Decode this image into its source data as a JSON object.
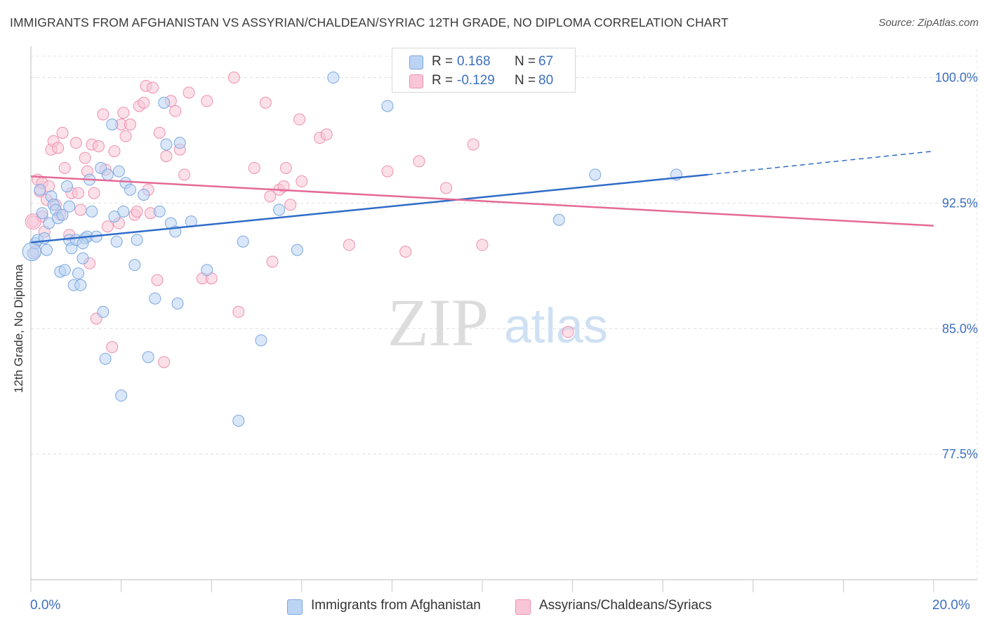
{
  "title": "IMMIGRANTS FROM AFGHANISTAN VS ASSYRIAN/CHALDEAN/SYRIAC 12TH GRADE, NO DIPLOMA CORRELATION CHART",
  "source": "Source: ZipAtlas.com",
  "watermark": {
    "zip": "ZIP",
    "atlas": "atlas"
  },
  "colors": {
    "blue": "#7ba7e0",
    "blue_fill": "#bcd4f4",
    "blue_line": "#2f6cc7",
    "pink": "#ef8fb0",
    "pink_fill": "#f8c6d6",
    "pink_line": "#e46a96",
    "tick_text": "#3c6fbf"
  },
  "legend": {
    "rows": [
      {
        "r_label": "R = ",
        "r_value": "0.168",
        "n_label": "N = ",
        "n_value": "67"
      },
      {
        "r_label": "R = ",
        "r_value": "-0.129",
        "n_label": "N = ",
        "n_value": "80"
      }
    ]
  },
  "bottom_legend": [
    "Immigrants from Afghanistan",
    "Assyrians/Chaldeans/Syriacs"
  ],
  "chart_data": {
    "type": "scatter",
    "title": "IMMIGRANTS FROM AFGHANISTAN VS ASSYRIAN/CHALDEAN/SYRIAC 12TH GRADE, NO DIPLOMA CORRELATION CHART",
    "xlabel": "",
    "ylabel": "12th Grade, No Diploma",
    "xlim": [
      0,
      20
    ],
    "ylim": [
      70.0,
      101.7
    ],
    "x_tick_labels": [
      "0.0%",
      "20.0%"
    ],
    "y_ticks": [
      100.0,
      92.5,
      85.0,
      77.5
    ],
    "y_tick_labels": [
      "100.0%",
      "92.5%",
      "85.0%",
      "77.5%"
    ],
    "grid": true,
    "legend_position": "top-center",
    "series": [
      {
        "name": "Immigrants from Afghanistan",
        "color": "#7ba7e0",
        "trend": {
          "x0": 0.0,
          "y0": 90.15,
          "x1": 15.0,
          "y1": 94.2,
          "dashed_to_x": 20.0,
          "dashed_to_y": 95.6
        },
        "points": [
          [
            0.05,
            89.5
          ],
          [
            0.1,
            90.1
          ],
          [
            0.15,
            90.3
          ],
          [
            0.2,
            93.3
          ],
          [
            0.25,
            91.9
          ],
          [
            0.3,
            90.4
          ],
          [
            0.35,
            89.7
          ],
          [
            0.4,
            91.3
          ],
          [
            0.45,
            92.9
          ],
          [
            0.5,
            92.4
          ],
          [
            0.55,
            92.1
          ],
          [
            0.6,
            91.6
          ],
          [
            0.65,
            88.4
          ],
          [
            0.7,
            91.8
          ],
          [
            0.75,
            88.5
          ],
          [
            0.8,
            93.5
          ],
          [
            0.85,
            90.3
          ],
          [
            0.9,
            89.8
          ],
          [
            0.95,
            87.6
          ],
          [
            1.0,
            90.3
          ],
          [
            1.05,
            88.3
          ],
          [
            1.1,
            87.6
          ],
          [
            1.15,
            89.2
          ],
          [
            1.2,
            90.4
          ],
          [
            1.25,
            90.5
          ],
          [
            1.3,
            93.9
          ],
          [
            1.35,
            92.0
          ],
          [
            1.45,
            90.5
          ],
          [
            1.55,
            94.6
          ],
          [
            1.6,
            86.0
          ],
          [
            1.65,
            83.2
          ],
          [
            1.7,
            94.2
          ],
          [
            1.8,
            97.2
          ],
          [
            1.85,
            91.7
          ],
          [
            1.9,
            90.2
          ],
          [
            1.95,
            94.4
          ],
          [
            2.0,
            81.0
          ],
          [
            2.05,
            92.0
          ],
          [
            2.1,
            93.7
          ],
          [
            2.2,
            93.3
          ],
          [
            2.3,
            88.8
          ],
          [
            2.35,
            90.3
          ],
          [
            2.5,
            93.0
          ],
          [
            2.6,
            83.3
          ],
          [
            2.75,
            86.8
          ],
          [
            2.85,
            92.0
          ],
          [
            2.95,
            98.5
          ],
          [
            3.0,
            96.0
          ],
          [
            3.1,
            91.3
          ],
          [
            3.2,
            90.8
          ],
          [
            3.25,
            86.5
          ],
          [
            3.3,
            96.1
          ],
          [
            3.55,
            91.4
          ],
          [
            3.9,
            88.5
          ],
          [
            4.6,
            79.5
          ],
          [
            4.7,
            90.2
          ],
          [
            5.1,
            84.3
          ],
          [
            5.5,
            92.1
          ],
          [
            5.9,
            89.7
          ],
          [
            6.7,
            100.0
          ],
          [
            7.9,
            98.3
          ],
          [
            8.3,
            100.0
          ],
          [
            11.7,
            91.5
          ],
          [
            14.3,
            94.2
          ],
          [
            12.5,
            94.2
          ],
          [
            0.85,
            92.3
          ],
          [
            1.15,
            90.1
          ]
        ]
      },
      {
        "name": "Assyrians/Chaldeans/Syriacs",
        "color": "#ef8fb0",
        "trend": {
          "x0": 0.0,
          "y0": 94.1,
          "x1": 20.0,
          "y1": 91.15
        },
        "points": [
          [
            0.05,
            91.4
          ],
          [
            0.1,
            89.6
          ],
          [
            0.15,
            93.9
          ],
          [
            0.2,
            93.2
          ],
          [
            0.25,
            93.7
          ],
          [
            0.3,
            90.8
          ],
          [
            0.35,
            92.7
          ],
          [
            0.4,
            93.5
          ],
          [
            0.45,
            95.7
          ],
          [
            0.5,
            96.2
          ],
          [
            0.6,
            95.8
          ],
          [
            0.65,
            91.8
          ],
          [
            0.7,
            96.7
          ],
          [
            0.75,
            94.6
          ],
          [
            0.85,
            90.6
          ],
          [
            0.9,
            93.1
          ],
          [
            1.0,
            96.1
          ],
          [
            1.05,
            93.1
          ],
          [
            1.1,
            92.1
          ],
          [
            1.2,
            95.2
          ],
          [
            1.25,
            94.4
          ],
          [
            1.3,
            88.9
          ],
          [
            1.35,
            96.0
          ],
          [
            1.4,
            93.1
          ],
          [
            1.45,
            85.6
          ],
          [
            1.5,
            95.9
          ],
          [
            1.6,
            97.8
          ],
          [
            1.65,
            94.5
          ],
          [
            1.7,
            91.1
          ],
          [
            1.8,
            83.9
          ],
          [
            1.85,
            95.6
          ],
          [
            1.95,
            91.3
          ],
          [
            2.0,
            97.2
          ],
          [
            2.05,
            97.9
          ],
          [
            2.1,
            96.5
          ],
          [
            2.2,
            97.2
          ],
          [
            2.3,
            91.8
          ],
          [
            2.35,
            92.0
          ],
          [
            2.4,
            98.3
          ],
          [
            2.5,
            98.5
          ],
          [
            2.55,
            99.5
          ],
          [
            2.6,
            93.3
          ],
          [
            2.7,
            99.4
          ],
          [
            2.8,
            87.9
          ],
          [
            2.85,
            96.7
          ],
          [
            2.95,
            83.0
          ],
          [
            3.0,
            95.3
          ],
          [
            3.1,
            98.6
          ],
          [
            3.2,
            98.0
          ],
          [
            3.3,
            95.7
          ],
          [
            3.4,
            94.2
          ],
          [
            3.5,
            99.1
          ],
          [
            3.8,
            88.0
          ],
          [
            3.9,
            98.6
          ],
          [
            4.0,
            88.0
          ],
          [
            4.5,
            100.0
          ],
          [
            4.6,
            86.0
          ],
          [
            4.95,
            94.6
          ],
          [
            5.2,
            98.5
          ],
          [
            5.3,
            92.9
          ],
          [
            5.35,
            89.0
          ],
          [
            5.5,
            93.3
          ],
          [
            5.6,
            93.5
          ],
          [
            5.65,
            94.6
          ],
          [
            5.75,
            92.4
          ],
          [
            5.95,
            97.5
          ],
          [
            6.0,
            93.8
          ],
          [
            6.4,
            96.4
          ],
          [
            6.55,
            96.6
          ],
          [
            7.05,
            90.0
          ],
          [
            7.9,
            94.4
          ],
          [
            8.3,
            89.6
          ],
          [
            8.6,
            95.0
          ],
          [
            9.2,
            93.4
          ],
          [
            9.8,
            96.0
          ],
          [
            10.0,
            90.0
          ],
          [
            11.9,
            84.8
          ],
          [
            0.25,
            91.7
          ],
          [
            2.65,
            91.9
          ],
          [
            0.55,
            92.4
          ]
        ]
      }
    ]
  }
}
